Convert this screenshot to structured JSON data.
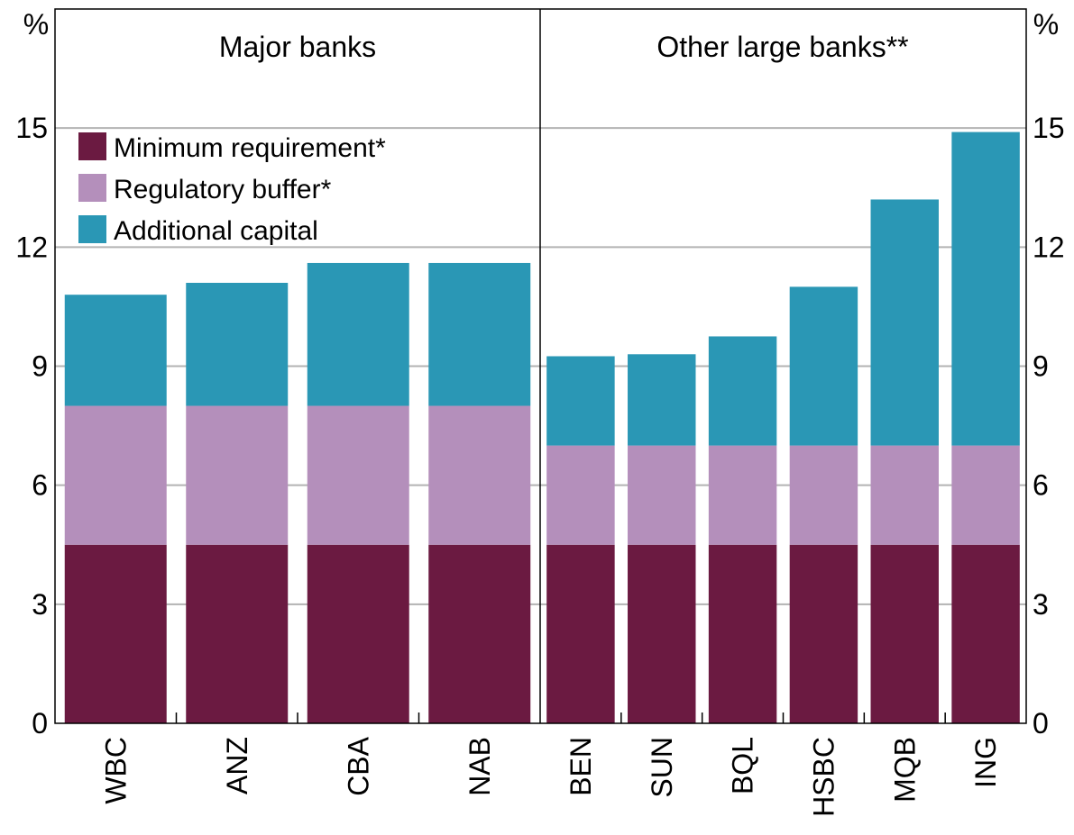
{
  "chart_data": {
    "type": "bar",
    "stacked": true,
    "unit_left": "%",
    "unit_right": "%",
    "ylim": [
      0,
      18
    ],
    "yticks": [
      0,
      3,
      6,
      9,
      12,
      15
    ],
    "grid": true,
    "legend_position": "top-left",
    "categories": [
      "WBC",
      "ANZ",
      "CBA",
      "NAB",
      "BEN",
      "SUN",
      "BQL",
      "HSBC",
      "MQB",
      "ING"
    ],
    "panels": [
      {
        "title": "Major banks",
        "categories": [
          "WBC",
          "ANZ",
          "CBA",
          "NAB"
        ]
      },
      {
        "title": "Other large banks**",
        "categories": [
          "BEN",
          "SUN",
          "BQL",
          "HSBC",
          "MQB",
          "ING"
        ]
      }
    ],
    "series": [
      {
        "name": "Minimum requirement*",
        "color": "#6b1a41",
        "values": [
          4.5,
          4.5,
          4.5,
          4.5,
          4.5,
          4.5,
          4.5,
          4.5,
          4.5,
          4.5
        ]
      },
      {
        "name": "Regulatory buffer*",
        "color": "#b48fbb",
        "values": [
          3.5,
          3.5,
          3.5,
          3.5,
          2.5,
          2.5,
          2.5,
          2.5,
          2.5,
          2.5
        ]
      },
      {
        "name": "Additional capital",
        "color": "#2a97b5",
        "values": [
          2.8,
          3.1,
          3.6,
          3.6,
          2.25,
          2.3,
          2.75,
          4.0,
          6.2,
          7.9
        ]
      }
    ]
  }
}
